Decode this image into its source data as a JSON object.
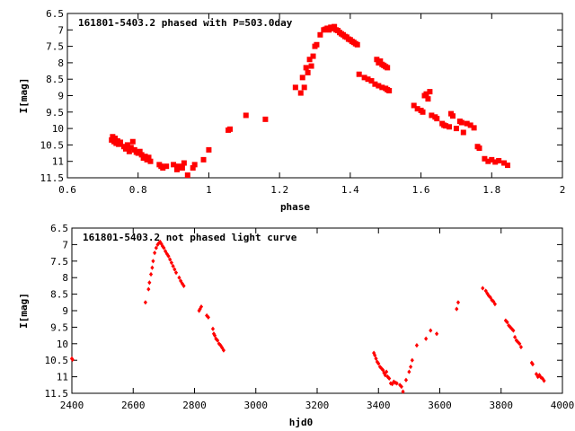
{
  "chart_data": [
    {
      "type": "scatter",
      "title": "161801-5403.2 phased with P=503.0day",
      "xlabel": "phase",
      "ylabel": "I[mag]",
      "xlim": [
        0.6,
        2.0
      ],
      "ylim": [
        11.5,
        6.5
      ],
      "y_inverted": true,
      "xticks": [
        "0.6",
        "0.8",
        "1",
        "1.2",
        "1.4",
        "1.6",
        "1.8",
        "2"
      ],
      "yticks": [
        "6.5",
        "7",
        "7.5",
        "8",
        "8.5",
        "9",
        "9.5",
        "10",
        "10.5",
        "11",
        "11.5"
      ],
      "marker_color": "#ff0000",
      "marker": "filled-square",
      "grid": false,
      "series": [
        {
          "points": [
            [
              0.725,
              10.35
            ],
            [
              0.728,
              10.25
            ],
            [
              0.732,
              10.4
            ],
            [
              0.735,
              10.3
            ],
            [
              0.738,
              10.45
            ],
            [
              0.742,
              10.38
            ],
            [
              0.745,
              10.48
            ],
            [
              0.75,
              10.42
            ],
            [
              0.76,
              10.55
            ],
            [
              0.765,
              10.62
            ],
            [
              0.77,
              10.5
            ],
            [
              0.775,
              10.7
            ],
            [
              0.78,
              10.58
            ],
            [
              0.785,
              10.4
            ],
            [
              0.79,
              10.65
            ],
            [
              0.795,
              10.72
            ],
            [
              0.8,
              10.75
            ],
            [
              0.805,
              10.7
            ],
            [
              0.81,
              10.8
            ],
            [
              0.815,
              10.9
            ],
            [
              0.82,
              10.85
            ],
            [
              0.825,
              10.95
            ],
            [
              0.83,
              10.88
            ],
            [
              0.835,
              11.0
            ],
            [
              0.86,
              11.1
            ],
            [
              0.865,
              11.15
            ],
            [
              0.87,
              11.2
            ],
            [
              0.88,
              11.15
            ],
            [
              0.9,
              11.1
            ],
            [
              0.91,
              11.25
            ],
            [
              0.915,
              11.15
            ],
            [
              0.925,
              11.2
            ],
            [
              0.93,
              11.05
            ],
            [
              0.94,
              11.42
            ],
            [
              0.955,
              11.2
            ],
            [
              0.96,
              11.1
            ],
            [
              0.985,
              10.95
            ],
            [
              1.0,
              10.65
            ],
            [
              1.055,
              10.05
            ],
            [
              1.06,
              10.02
            ],
            [
              1.105,
              9.6
            ],
            [
              1.16,
              9.72
            ],
            [
              1.245,
              8.75
            ],
            [
              1.26,
              8.92
            ],
            [
              1.265,
              8.45
            ],
            [
              1.27,
              8.75
            ],
            [
              1.275,
              8.15
            ],
            [
              1.28,
              8.3
            ],
            [
              1.285,
              7.9
            ],
            [
              1.29,
              8.1
            ],
            [
              1.295,
              7.8
            ],
            [
              1.3,
              7.5
            ],
            [
              1.305,
              7.45
            ],
            [
              1.315,
              7.15
            ],
            [
              1.325,
              7.0
            ],
            [
              1.33,
              6.98
            ],
            [
              1.335,
              6.95
            ],
            [
              1.34,
              7.0
            ],
            [
              1.345,
              6.92
            ],
            [
              1.35,
              6.96
            ],
            [
              1.355,
              6.9
            ],
            [
              1.36,
              7.0
            ],
            [
              1.365,
              7.02
            ],
            [
              1.37,
              7.08
            ],
            [
              1.375,
              7.12
            ],
            [
              1.38,
              7.15
            ],
            [
              1.385,
              7.2
            ],
            [
              1.39,
              7.22
            ],
            [
              1.395,
              7.28
            ],
            [
              1.4,
              7.3
            ],
            [
              1.405,
              7.35
            ],
            [
              1.41,
              7.38
            ],
            [
              1.415,
              7.42
            ],
            [
              1.42,
              7.45
            ],
            [
              1.425,
              8.35
            ],
            [
              1.44,
              8.45
            ],
            [
              1.45,
              8.5
            ],
            [
              1.46,
              8.55
            ],
            [
              1.47,
              8.65
            ],
            [
              1.48,
              8.7
            ],
            [
              1.475,
              7.9
            ],
            [
              1.48,
              8.0
            ],
            [
              1.485,
              7.95
            ],
            [
              1.49,
              8.05
            ],
            [
              1.495,
              8.08
            ],
            [
              1.5,
              8.12
            ],
            [
              1.505,
              8.15
            ],
            [
              1.49,
              8.75
            ],
            [
              1.5,
              8.78
            ],
            [
              1.505,
              8.82
            ],
            [
              1.51,
              8.85
            ],
            [
              1.58,
              9.3
            ],
            [
              1.59,
              9.4
            ],
            [
              1.6,
              9.45
            ],
            [
              1.605,
              9.5
            ],
            [
              1.61,
              9.0
            ],
            [
              1.615,
              8.95
            ],
            [
              1.62,
              9.1
            ],
            [
              1.625,
              8.88
            ],
            [
              1.63,
              9.6
            ],
            [
              1.64,
              9.65
            ],
            [
              1.645,
              9.7
            ],
            [
              1.66,
              9.85
            ],
            [
              1.665,
              9.9
            ],
            [
              1.67,
              9.92
            ],
            [
              1.68,
              9.95
            ],
            [
              1.685,
              9.55
            ],
            [
              1.69,
              9.62
            ],
            [
              1.7,
              10.0
            ],
            [
              1.71,
              9.78
            ],
            [
              1.715,
              9.82
            ],
            [
              1.72,
              10.12
            ],
            [
              1.73,
              9.85
            ],
            [
              1.74,
              9.9
            ],
            [
              1.75,
              9.98
            ],
            [
              1.76,
              10.55
            ],
            [
              1.765,
              10.6
            ],
            [
              1.78,
              10.92
            ],
            [
              1.79,
              11.0
            ],
            [
              1.8,
              10.95
            ],
            [
              1.81,
              11.02
            ],
            [
              1.82,
              10.98
            ],
            [
              1.835,
              11.05
            ],
            [
              1.845,
              11.12
            ]
          ]
        }
      ]
    },
    {
      "type": "scatter",
      "title": "161801-5403.2 not phased light curve",
      "xlabel": "hjd0",
      "ylabel": "I[mag]",
      "xlim": [
        2400,
        4000
      ],
      "ylim": [
        11.5,
        6.5
      ],
      "y_inverted": true,
      "xticks": [
        "2400",
        "2600",
        "2800",
        "3000",
        "3200",
        "3400",
        "3600",
        "3800",
        "4000"
      ],
      "yticks": [
        "6.5",
        "7",
        "7.5",
        "8",
        "8.5",
        "9",
        "9.5",
        "10",
        "10.5",
        "11",
        "11.5"
      ],
      "marker_color": "#ff0000",
      "marker": "filled-diamond",
      "grid": false,
      "series": [
        {
          "points": [
            [
              2400,
              10.45
            ],
            [
              2402,
              10.48
            ],
            [
              2640,
              8.75
            ],
            [
              2650,
              8.35
            ],
            [
              2653,
              8.15
            ],
            [
              2658,
              7.9
            ],
            [
              2662,
              7.7
            ],
            [
              2665,
              7.5
            ],
            [
              2670,
              7.25
            ],
            [
              2675,
              7.1
            ],
            [
              2680,
              7.0
            ],
            [
              2684,
              6.95
            ],
            [
              2688,
              6.92
            ],
            [
              2692,
              6.98
            ],
            [
              2696,
              7.05
            ],
            [
              2700,
              7.1
            ],
            [
              2705,
              7.2
            ],
            [
              2710,
              7.28
            ],
            [
              2715,
              7.35
            ],
            [
              2720,
              7.45
            ],
            [
              2725,
              7.55
            ],
            [
              2730,
              7.65
            ],
            [
              2735,
              7.75
            ],
            [
              2740,
              7.85
            ],
            [
              2750,
              8.0
            ],
            [
              2755,
              8.1
            ],
            [
              2760,
              8.18
            ],
            [
              2765,
              8.25
            ],
            [
              2815,
              9.0
            ],
            [
              2818,
              8.95
            ],
            [
              2822,
              8.88
            ],
            [
              2840,
              9.15
            ],
            [
              2845,
              9.2
            ],
            [
              2860,
              9.55
            ],
            [
              2863,
              9.7
            ],
            [
              2866,
              9.75
            ],
            [
              2870,
              9.85
            ],
            [
              2875,
              9.9
            ],
            [
              2880,
              10.0
            ],
            [
              2885,
              10.05
            ],
            [
              2890,
              10.12
            ],
            [
              2895,
              10.2
            ],
            [
              3385,
              10.28
            ],
            [
              3388,
              10.35
            ],
            [
              3392,
              10.45
            ],
            [
              3396,
              10.55
            ],
            [
              3400,
              10.6
            ],
            [
              3405,
              10.7
            ],
            [
              3410,
              10.75
            ],
            [
              3415,
              10.8
            ],
            [
              3418,
              10.88
            ],
            [
              3422,
              10.95
            ],
            [
              3426,
              10.85
            ],
            [
              3430,
              11.0
            ],
            [
              3435,
              11.05
            ],
            [
              3440,
              11.2
            ],
            [
              3445,
              11.22
            ],
            [
              3450,
              11.15
            ],
            [
              3455,
              11.18
            ],
            [
              3460,
              11.2
            ],
            [
              3470,
              11.25
            ],
            [
              3475,
              11.3
            ],
            [
              3480,
              11.45
            ],
            [
              3490,
              11.1
            ],
            [
              3500,
              10.85
            ],
            [
              3505,
              10.7
            ],
            [
              3510,
              10.5
            ],
            [
              3525,
              10.05
            ],
            [
              3555,
              9.85
            ],
            [
              3570,
              9.6
            ],
            [
              3590,
              9.7
            ],
            [
              3655,
              8.95
            ],
            [
              3660,
              8.75
            ],
            [
              3740,
              8.32
            ],
            [
              3750,
              8.4
            ],
            [
              3755,
              8.48
            ],
            [
              3760,
              8.55
            ],
            [
              3765,
              8.6
            ],
            [
              3770,
              8.68
            ],
            [
              3775,
              8.72
            ],
            [
              3780,
              8.8
            ],
            [
              3815,
              9.3
            ],
            [
              3820,
              9.35
            ],
            [
              3825,
              9.45
            ],
            [
              3830,
              9.5
            ],
            [
              3835,
              9.55
            ],
            [
              3840,
              9.6
            ],
            [
              3845,
              9.8
            ],
            [
              3850,
              9.9
            ],
            [
              3855,
              9.95
            ],
            [
              3860,
              10.0
            ],
            [
              3865,
              10.1
            ],
            [
              3900,
              10.58
            ],
            [
              3903,
              10.62
            ],
            [
              3915,
              10.92
            ],
            [
              3920,
              11.0
            ],
            [
              3925,
              10.95
            ],
            [
              3930,
              11.02
            ],
            [
              3935,
              11.05
            ],
            [
              3940,
              11.12
            ]
          ]
        }
      ]
    }
  ]
}
